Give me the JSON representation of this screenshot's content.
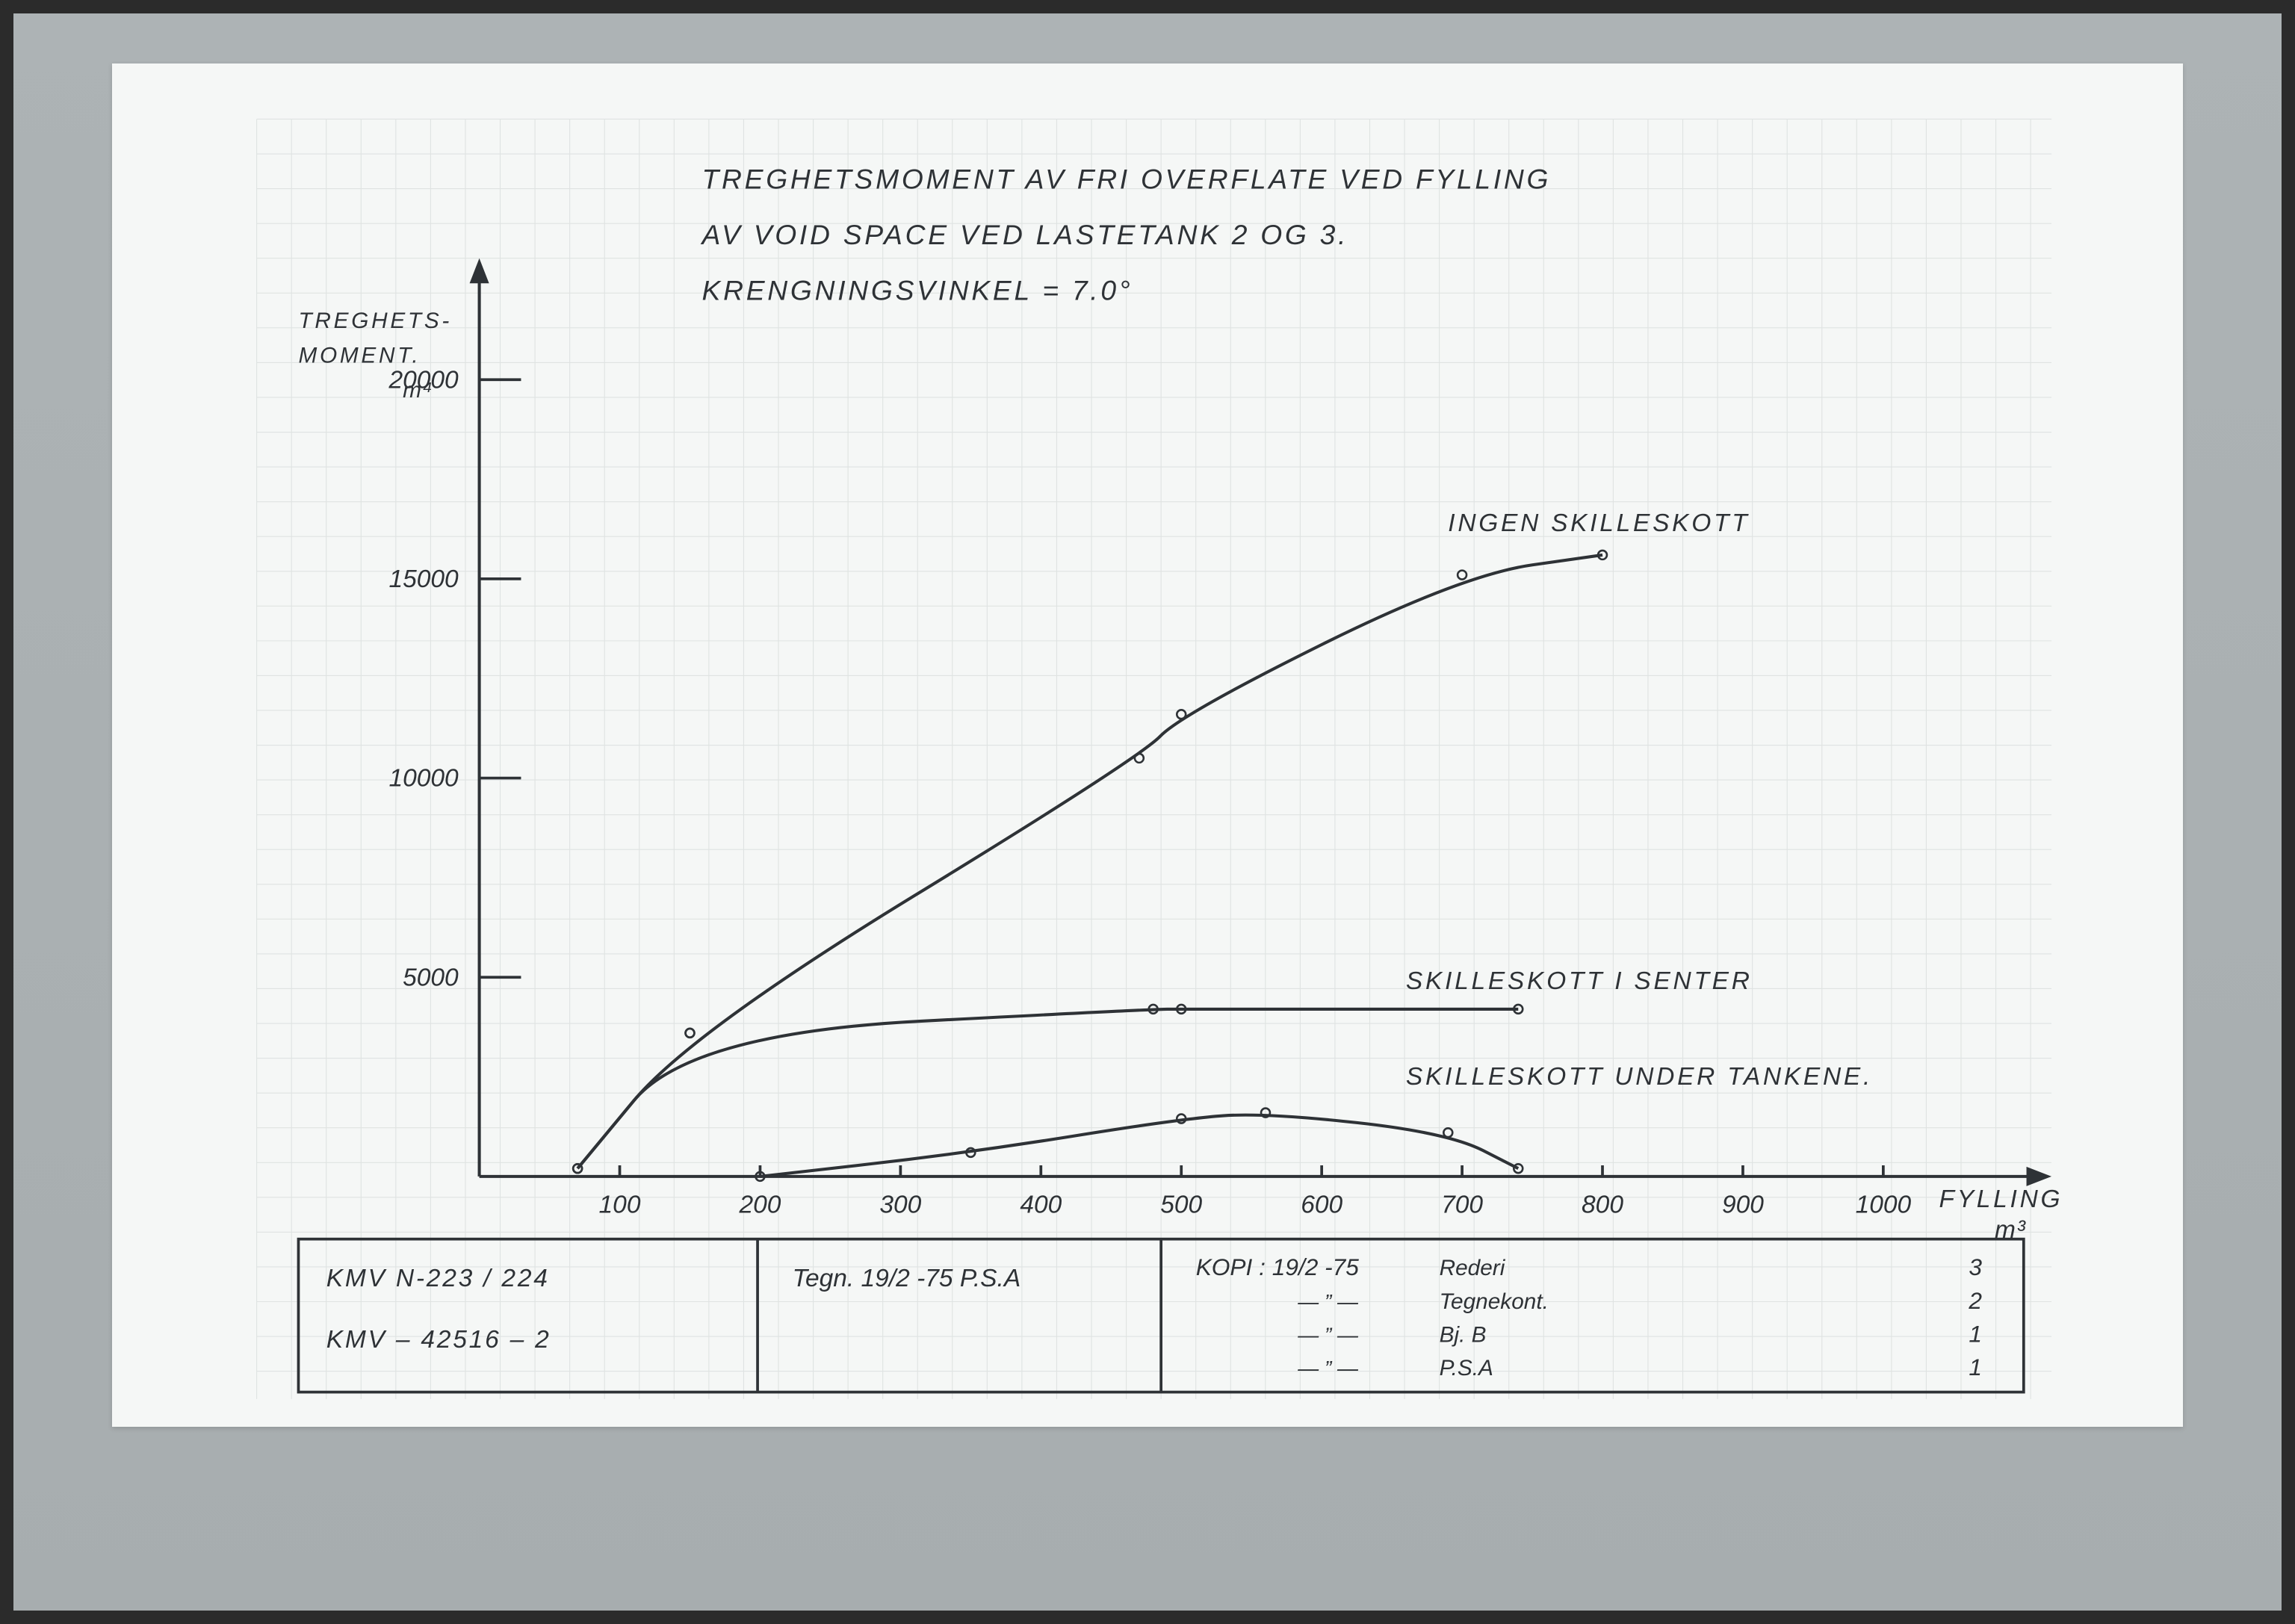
{
  "page": {
    "background_color": "#adb3b5",
    "paper_color": "#f5f7f6",
    "frame_border_color": "#2b2b2b",
    "ink_color": "#2e3236",
    "grid_color": "#dfe3e2"
  },
  "title": {
    "line1": "TREGHETSMOMENT   AV   FRI   OVERFLATE   VED   FYLLING",
    "line2": "AV   VOID   SPACE   VED   LASTETANK   2   OG   3.",
    "line3": "KRENGNINGSVINKEL = 7.0°",
    "fontsize": 20
  },
  "chart": {
    "type": "line",
    "x_axis": {
      "label": "FYLLING",
      "unit": "m³",
      "min": 0,
      "max": 1100,
      "ticks": [
        100,
        200,
        300,
        400,
        500,
        600,
        700,
        800,
        900,
        1000
      ],
      "tick_fontsize": 18
    },
    "y_axis": {
      "label_line1": "TREGHETS-",
      "label_line2": "MOMENT.",
      "unit": "m⁴",
      "min": 0,
      "max": 22000,
      "ticks": [
        5000,
        10000,
        15000,
        20000
      ],
      "tick_fontsize": 18
    },
    "line_color": "#2e3236",
    "line_width": 2.2,
    "marker_radius": 3.2,
    "series": [
      {
        "name": "INGEN SKILLESKOTT",
        "label_xy": [
          690,
          16200
        ],
        "points": [
          [
            70,
            200
          ],
          [
            150,
            3600
          ],
          [
            470,
            10500
          ],
          [
            500,
            11600
          ],
          [
            700,
            15100
          ],
          [
            800,
            15600
          ]
        ]
      },
      {
        "name": "SKILLESKOTT I SENTER",
        "label_xy": [
          660,
          4700
        ],
        "points": [
          [
            70,
            200
          ],
          [
            150,
            3600
          ],
          [
            480,
            4200
          ],
          [
            500,
            4200
          ],
          [
            740,
            4200
          ]
        ]
      },
      {
        "name": "SKILLESKOTT UNDER TANKENE.",
        "label_xy": [
          660,
          2300
        ],
        "points": [
          [
            200,
            0
          ],
          [
            350,
            600
          ],
          [
            500,
            1450
          ],
          [
            560,
            1600
          ],
          [
            690,
            1100
          ],
          [
            740,
            200
          ]
        ]
      }
    ]
  },
  "info_block": {
    "left": {
      "line1": "KMV   N-223 / 224",
      "line2": "KMV  – 42516 – 2"
    },
    "mid": {
      "line1": "Tegn. 19/2 -75  P.S.A"
    },
    "right": {
      "header": "KOPI :  19/2 -75",
      "rows": [
        {
          "label": "Rederi",
          "qty": "3"
        },
        {
          "label": "Tegnekont.",
          "qty": "2"
        },
        {
          "label": "Bj. B",
          "qty": "1"
        },
        {
          "label": "P.S.A",
          "qty": "1"
        }
      ],
      "ditto": "— ” —"
    },
    "border_color": "#2e3236",
    "fontsize": 18
  }
}
